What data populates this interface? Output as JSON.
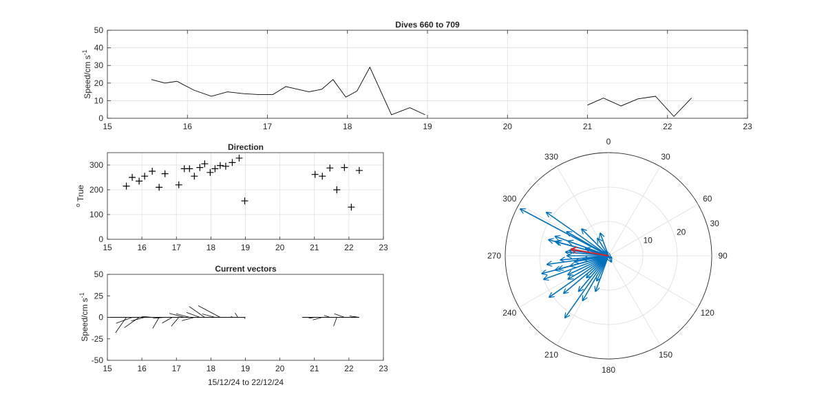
{
  "colors": {
    "axes": "#262626",
    "grid": "#dcdcdc",
    "line": "#000000",
    "vector_blue": "#0072bd",
    "vector_red": "#d62728"
  },
  "chart_data": [
    {
      "id": "speed",
      "type": "line",
      "title": "Dives 660 to 709",
      "ylabel": "Speed/cm s",
      "ylabel_superscript": "-1",
      "xlim": [
        15,
        23
      ],
      "ylim": [
        0,
        50
      ],
      "xticks": [
        "15",
        "16",
        "17",
        "18",
        "19",
        "20",
        "21",
        "22",
        "23"
      ],
      "yticks": [
        "0",
        "10",
        "20",
        "30",
        "40",
        "50"
      ],
      "grid": true,
      "segments": [
        {
          "x": [
            15.55,
            15.72,
            15.87,
            16.08,
            16.3,
            16.5,
            16.7,
            16.88,
            17.07,
            17.23,
            17.52,
            17.68,
            17.82,
            17.98,
            18.12,
            18.28,
            18.55,
            18.78,
            18.97
          ],
          "y": [
            22,
            20,
            21,
            16,
            12.5,
            15,
            14,
            13.5,
            13.5,
            18,
            15,
            16.5,
            22,
            12,
            15.5,
            29,
            2,
            6,
            2
          ]
        },
        {
          "x": [
            21.0,
            21.2,
            21.42,
            21.63,
            21.85,
            22.08,
            22.3
          ],
          "y": [
            7.5,
            11.5,
            7,
            11,
            12.5,
            1,
            11.5
          ]
        }
      ]
    },
    {
      "id": "direction",
      "type": "scatter",
      "title": "Direction",
      "ylabel": "True",
      "ylabel_prefix": "o",
      "xlim": [
        15,
        23
      ],
      "ylim": [
        0,
        350
      ],
      "xticks": [
        "15",
        "16",
        "17",
        "18",
        "19",
        "20",
        "21",
        "22",
        "23"
      ],
      "yticks": [
        "0",
        "100",
        "200",
        "300"
      ],
      "marker": "+",
      "grid": true,
      "points": {
        "x": [
          15.55,
          15.72,
          15.92,
          16.08,
          16.3,
          16.5,
          16.67,
          17.07,
          17.23,
          17.38,
          17.52,
          17.68,
          17.82,
          17.98,
          18.12,
          18.27,
          18.43,
          18.62,
          18.82,
          18.98,
          21.02,
          21.23,
          21.45,
          21.65,
          21.87,
          22.07,
          22.3
        ],
        "y": [
          215,
          250,
          235,
          255,
          275,
          210,
          265,
          220,
          285,
          285,
          255,
          290,
          305,
          270,
          285,
          298,
          295,
          310,
          328,
          155,
          262,
          255,
          288,
          200,
          290,
          130,
          278
        ]
      }
    },
    {
      "id": "vectors",
      "type": "quiver",
      "title": "Current vectors",
      "ylabel": "Speed/cm s",
      "ylabel_superscript": "-1",
      "xlabel": "15/12/24 to 22/12/24",
      "xlim": [
        15,
        23
      ],
      "ylim": [
        -50,
        50
      ],
      "xticks": [
        "15",
        "16",
        "17",
        "18",
        "19",
        "20",
        "21",
        "22",
        "23"
      ],
      "yticks": [
        "-50",
        "-25",
        "0",
        "25",
        "50"
      ],
      "grid": false,
      "vectors": [
        {
          "x": 15.55,
          "speed": 22,
          "dir": 215
        },
        {
          "x": 15.72,
          "speed": 20,
          "dir": 250
        },
        {
          "x": 15.92,
          "speed": 21,
          "dir": 235
        },
        {
          "x": 16.08,
          "speed": 16,
          "dir": 255
        },
        {
          "x": 16.3,
          "speed": 12.5,
          "dir": 275
        },
        {
          "x": 16.5,
          "speed": 15,
          "dir": 210
        },
        {
          "x": 16.67,
          "speed": 14,
          "dir": 265
        },
        {
          "x": 16.88,
          "speed": 13.5,
          "dir": 240
        },
        {
          "x": 17.07,
          "speed": 13.5,
          "dir": 220
        },
        {
          "x": 17.23,
          "speed": 18,
          "dir": 285
        },
        {
          "x": 17.38,
          "speed": 16,
          "dir": 285
        },
        {
          "x": 17.52,
          "speed": 15,
          "dir": 255
        },
        {
          "x": 17.68,
          "speed": 16.5,
          "dir": 290
        },
        {
          "x": 17.82,
          "speed": 22,
          "dir": 305
        },
        {
          "x": 17.98,
          "speed": 12,
          "dir": 270
        },
        {
          "x": 18.12,
          "speed": 15.5,
          "dir": 285
        },
        {
          "x": 18.27,
          "speed": 29,
          "dir": 298
        },
        {
          "x": 18.62,
          "speed": 2,
          "dir": 310
        },
        {
          "x": 18.78,
          "speed": 6,
          "dir": 328
        },
        {
          "x": 18.97,
          "speed": 2,
          "dir": 155
        },
        {
          "x": 21.02,
          "speed": 7.5,
          "dir": 262
        },
        {
          "x": 21.23,
          "speed": 11.5,
          "dir": 255
        },
        {
          "x": 21.45,
          "speed": 7,
          "dir": 288
        },
        {
          "x": 21.65,
          "speed": 11,
          "dir": 200
        },
        {
          "x": 21.87,
          "speed": 12.5,
          "dir": 290
        },
        {
          "x": 22.07,
          "speed": 1,
          "dir": 130
        },
        {
          "x": 22.3,
          "speed": 11.5,
          "dir": 278
        }
      ]
    },
    {
      "id": "polar",
      "type": "polar-compass",
      "rmax": 30,
      "rticks": [
        "10",
        "20",
        "30"
      ],
      "angle_labels": [
        "0",
        "30",
        "60",
        "90",
        "120",
        "150",
        "180",
        "210",
        "240",
        "270",
        "300",
        "330"
      ],
      "vectors": [
        {
          "speed": 22,
          "dir": 215
        },
        {
          "speed": 20,
          "dir": 250
        },
        {
          "speed": 21,
          "dir": 235
        },
        {
          "speed": 16,
          "dir": 255
        },
        {
          "speed": 12.5,
          "dir": 275
        },
        {
          "speed": 15,
          "dir": 210
        },
        {
          "speed": 14,
          "dir": 265
        },
        {
          "speed": 13.5,
          "dir": 240
        },
        {
          "speed": 13.5,
          "dir": 220
        },
        {
          "speed": 18,
          "dir": 285
        },
        {
          "speed": 16,
          "dir": 285
        },
        {
          "speed": 15,
          "dir": 255
        },
        {
          "speed": 16.5,
          "dir": 290
        },
        {
          "speed": 22,
          "dir": 305
        },
        {
          "speed": 12,
          "dir": 270
        },
        {
          "speed": 15.5,
          "dir": 285
        },
        {
          "speed": 29,
          "dir": 298
        },
        {
          "speed": 2,
          "dir": 310
        },
        {
          "speed": 6,
          "dir": 328
        },
        {
          "speed": 2,
          "dir": 155
        },
        {
          "speed": 7.5,
          "dir": 262
        },
        {
          "speed": 11.5,
          "dir": 255
        },
        {
          "speed": 7,
          "dir": 288
        },
        {
          "speed": 11,
          "dir": 200
        },
        {
          "speed": 12.5,
          "dir": 290
        },
        {
          "speed": 1,
          "dir": 130
        },
        {
          "speed": 11.5,
          "dir": 278
        },
        {
          "speed": 20,
          "dir": 255
        },
        {
          "speed": 17,
          "dir": 230
        },
        {
          "speed": 13,
          "dir": 245
        },
        {
          "speed": 10,
          "dir": 260
        },
        {
          "speed": 9,
          "dir": 225
        },
        {
          "speed": 8,
          "dir": 205
        },
        {
          "speed": 18,
          "dir": 262
        },
        {
          "speed": 14,
          "dir": 300
        },
        {
          "speed": 11,
          "dir": 315
        },
        {
          "speed": 7,
          "dir": 340
        }
      ],
      "mean_vector": {
        "speed": 11,
        "dir": 280
      }
    }
  ]
}
